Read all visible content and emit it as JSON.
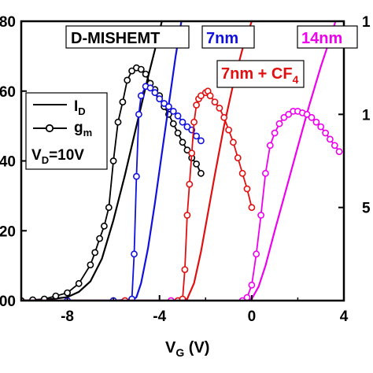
{
  "chart_data": {
    "type": "line",
    "xlabel_main": "V",
    "xlabel_sub": "G",
    "xlabel_unit": " (V)",
    "xlim": [
      -10,
      4
    ],
    "xticks": [
      "-8",
      "-4",
      "0",
      "4"
    ],
    "yleft_ticks": [
      "00",
      "20",
      "40",
      "60",
      "80"
    ],
    "yright_ticks": [
      "1",
      "1",
      "5"
    ],
    "yleft_range": [
      0,
      80
    ],
    "yright_range": [
      0,
      1.8
    ],
    "legend": {
      "id_prefix": "I",
      "id_sub": "D",
      "gm_prefix": "g",
      "gm_sub": "m",
      "vd_prefix": "V",
      "vd_sub": "D",
      "vd_suffix": "=10V"
    },
    "labels": {
      "dmishemt": "D-MISHEMT",
      "nm7": "7nm",
      "cf4_prefix": "7nm + CF",
      "cf4_sub": "4",
      "nm14": "14nm"
    },
    "series": [
      {
        "name": "D-MISHEMT",
        "color": "#000000",
        "id": [
          [
            -10,
            0
          ],
          [
            -9,
            0.2
          ],
          [
            -8,
            1.0
          ],
          [
            -7.5,
            2.5
          ],
          [
            -7,
            5.5
          ],
          [
            -6.5,
            12
          ],
          [
            -6,
            23
          ],
          [
            -5.5,
            36
          ],
          [
            -5,
            50
          ],
          [
            -4.5,
            64
          ],
          [
            -4.0,
            77
          ],
          [
            -3.8,
            83
          ]
        ],
        "gm": [
          [
            -10,
            0
          ],
          [
            -9.5,
            0.005
          ],
          [
            -9,
            0.01
          ],
          [
            -8.5,
            0.03
          ],
          [
            -8,
            0.05
          ],
          [
            -7.5,
            0.11
          ],
          [
            -7,
            0.23
          ],
          [
            -6.8,
            0.31
          ],
          [
            -6.6,
            0.4
          ],
          [
            -6.4,
            0.48
          ],
          [
            -6.2,
            0.6
          ],
          [
            -6,
            0.9
          ],
          [
            -5.8,
            1.15
          ],
          [
            -5.6,
            1.28
          ],
          [
            -5.4,
            1.42
          ],
          [
            -5.2,
            1.48
          ],
          [
            -5,
            1.5
          ],
          [
            -4.8,
            1.49
          ],
          [
            -4.6,
            1.46
          ],
          [
            -4.4,
            1.4
          ],
          [
            -4.2,
            1.36
          ],
          [
            -4.0,
            1.32
          ],
          [
            -3.8,
            1.25
          ],
          [
            -3.6,
            1.2
          ],
          [
            -3.4,
            1.14
          ],
          [
            -3.2,
            1.08
          ],
          [
            -3.0,
            1.02
          ],
          [
            -2.8,
            0.97
          ],
          [
            -2.6,
            0.92
          ],
          [
            -2.4,
            0.88
          ],
          [
            -2.2,
            0.82
          ]
        ]
      },
      {
        "name": "7nm",
        "color": "#1111dd",
        "id": [
          [
            -10,
            0
          ],
          [
            -5.2,
            0
          ],
          [
            -5.0,
            1
          ],
          [
            -4.8,
            5
          ],
          [
            -4.5,
            15
          ],
          [
            -4.2,
            28
          ],
          [
            -3.9,
            42
          ],
          [
            -3.6,
            56
          ],
          [
            -3.3,
            70
          ],
          [
            -3.0,
            82
          ],
          [
            -2.8,
            89
          ]
        ],
        "gm": [
          [
            -8,
            0
          ],
          [
            -6,
            0
          ],
          [
            -5.2,
            0.01
          ],
          [
            -5.1,
            0.3
          ],
          [
            -5.0,
            0.8
          ],
          [
            -4.9,
            1.2
          ],
          [
            -4.8,
            1.32
          ],
          [
            -4.6,
            1.38
          ],
          [
            -4.4,
            1.37
          ],
          [
            -4.2,
            1.34
          ],
          [
            -4.0,
            1.3
          ],
          [
            -3.8,
            1.27
          ],
          [
            -3.6,
            1.25
          ],
          [
            -3.4,
            1.22
          ],
          [
            -3.2,
            1.19
          ],
          [
            -3.0,
            1.15
          ],
          [
            -2.8,
            1.12
          ],
          [
            -2.6,
            1.1
          ],
          [
            -2.4,
            1.06
          ],
          [
            -2.2,
            1.03
          ]
        ]
      },
      {
        "name": "7nm + CF4",
        "color": "#e01010",
        "id": [
          [
            -10,
            0
          ],
          [
            -3.0,
            0
          ],
          [
            -2.8,
            0.5
          ],
          [
            -2.5,
            5
          ],
          [
            -2.2,
            14
          ],
          [
            -1.9,
            25
          ],
          [
            -1.6,
            36
          ],
          [
            -1.2,
            50
          ],
          [
            -0.8,
            62
          ],
          [
            -0.4,
            72
          ],
          [
            0.0,
            80
          ],
          [
            0.4,
            89
          ]
        ],
        "gm": [
          [
            -5.5,
            0
          ],
          [
            -3.2,
            0
          ],
          [
            -3.0,
            0.01
          ],
          [
            -2.9,
            0.2
          ],
          [
            -2.8,
            0.55
          ],
          [
            -2.7,
            0.75
          ],
          [
            -2.6,
            0.95
          ],
          [
            -2.5,
            1.15
          ],
          [
            -2.4,
            1.26
          ],
          [
            -2.3,
            1.3
          ],
          [
            -2.2,
            1.32
          ],
          [
            -2.0,
            1.34
          ],
          [
            -1.9,
            1.35
          ],
          [
            -1.8,
            1.32
          ],
          [
            -1.6,
            1.28
          ],
          [
            -1.4,
            1.24
          ],
          [
            -1.2,
            1.18
          ],
          [
            -1.0,
            1.1
          ],
          [
            -0.8,
            1.02
          ],
          [
            -0.6,
            0.92
          ],
          [
            -0.4,
            0.82
          ],
          [
            -0.2,
            0.72
          ],
          [
            0.0,
            0.6
          ]
        ]
      },
      {
        "name": "14nm",
        "color": "#ee00ee",
        "id": [
          [
            -10,
            0
          ],
          [
            -0.2,
            0
          ],
          [
            0.0,
            0.5
          ],
          [
            0.3,
            4
          ],
          [
            0.6,
            10
          ],
          [
            1.0,
            20
          ],
          [
            1.5,
            32
          ],
          [
            2.0,
            44
          ],
          [
            2.5,
            56
          ],
          [
            3.0,
            67
          ],
          [
            3.5,
            77
          ],
          [
            3.9,
            86
          ]
        ],
        "gm": [
          [
            -3.5,
            0
          ],
          [
            -0.4,
            0
          ],
          [
            -0.2,
            0.02
          ],
          [
            0.0,
            0.1
          ],
          [
            0.2,
            0.3
          ],
          [
            0.4,
            0.55
          ],
          [
            0.6,
            0.82
          ],
          [
            0.8,
            1.0
          ],
          [
            1.0,
            1.08
          ],
          [
            1.2,
            1.14
          ],
          [
            1.4,
            1.18
          ],
          [
            1.6,
            1.2
          ],
          [
            1.8,
            1.22
          ],
          [
            2.0,
            1.22
          ],
          [
            2.2,
            1.21
          ],
          [
            2.4,
            1.2
          ],
          [
            2.6,
            1.18
          ],
          [
            2.8,
            1.15
          ],
          [
            3.0,
            1.12
          ],
          [
            3.2,
            1.08
          ],
          [
            3.4,
            1.04
          ],
          [
            3.6,
            1.0
          ],
          [
            3.8,
            0.96
          ]
        ]
      }
    ]
  }
}
